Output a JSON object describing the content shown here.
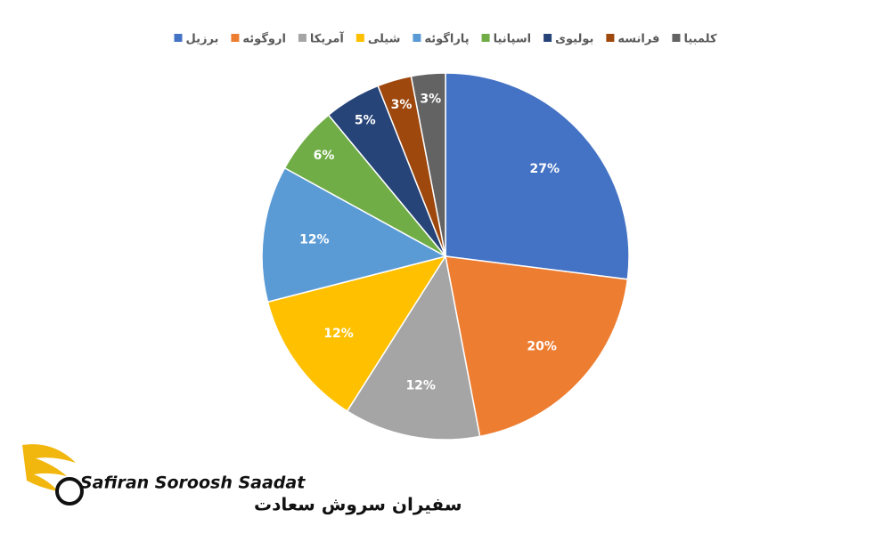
{
  "chart_data": {
    "type": "pie",
    "categories": [
      "برزیل",
      "اروگوئه",
      "آمریکا",
      "شیلی",
      "پاراگوئه",
      "اسپانیا",
      "بولیوی",
      "فرانسه",
      "کلمبیا"
    ],
    "values": [
      27,
      20,
      12,
      12,
      12,
      6,
      5,
      3,
      3
    ],
    "value_labels": [
      "27%",
      "20%",
      "12%",
      "12%",
      "12%",
      "6%",
      "5%",
      "3%",
      "3%"
    ],
    "colors": [
      "#4472c4",
      "#ed7d31",
      "#a5a5a5",
      "#ffc000",
      "#5b9bd5",
      "#70ad47",
      "#264478",
      "#9e480e",
      "#636363"
    ],
    "legend": "top"
  },
  "logo": {
    "name_en": "Safiran Soroosh Saadat",
    "name_fa": "سفیران سروش سعادت"
  }
}
